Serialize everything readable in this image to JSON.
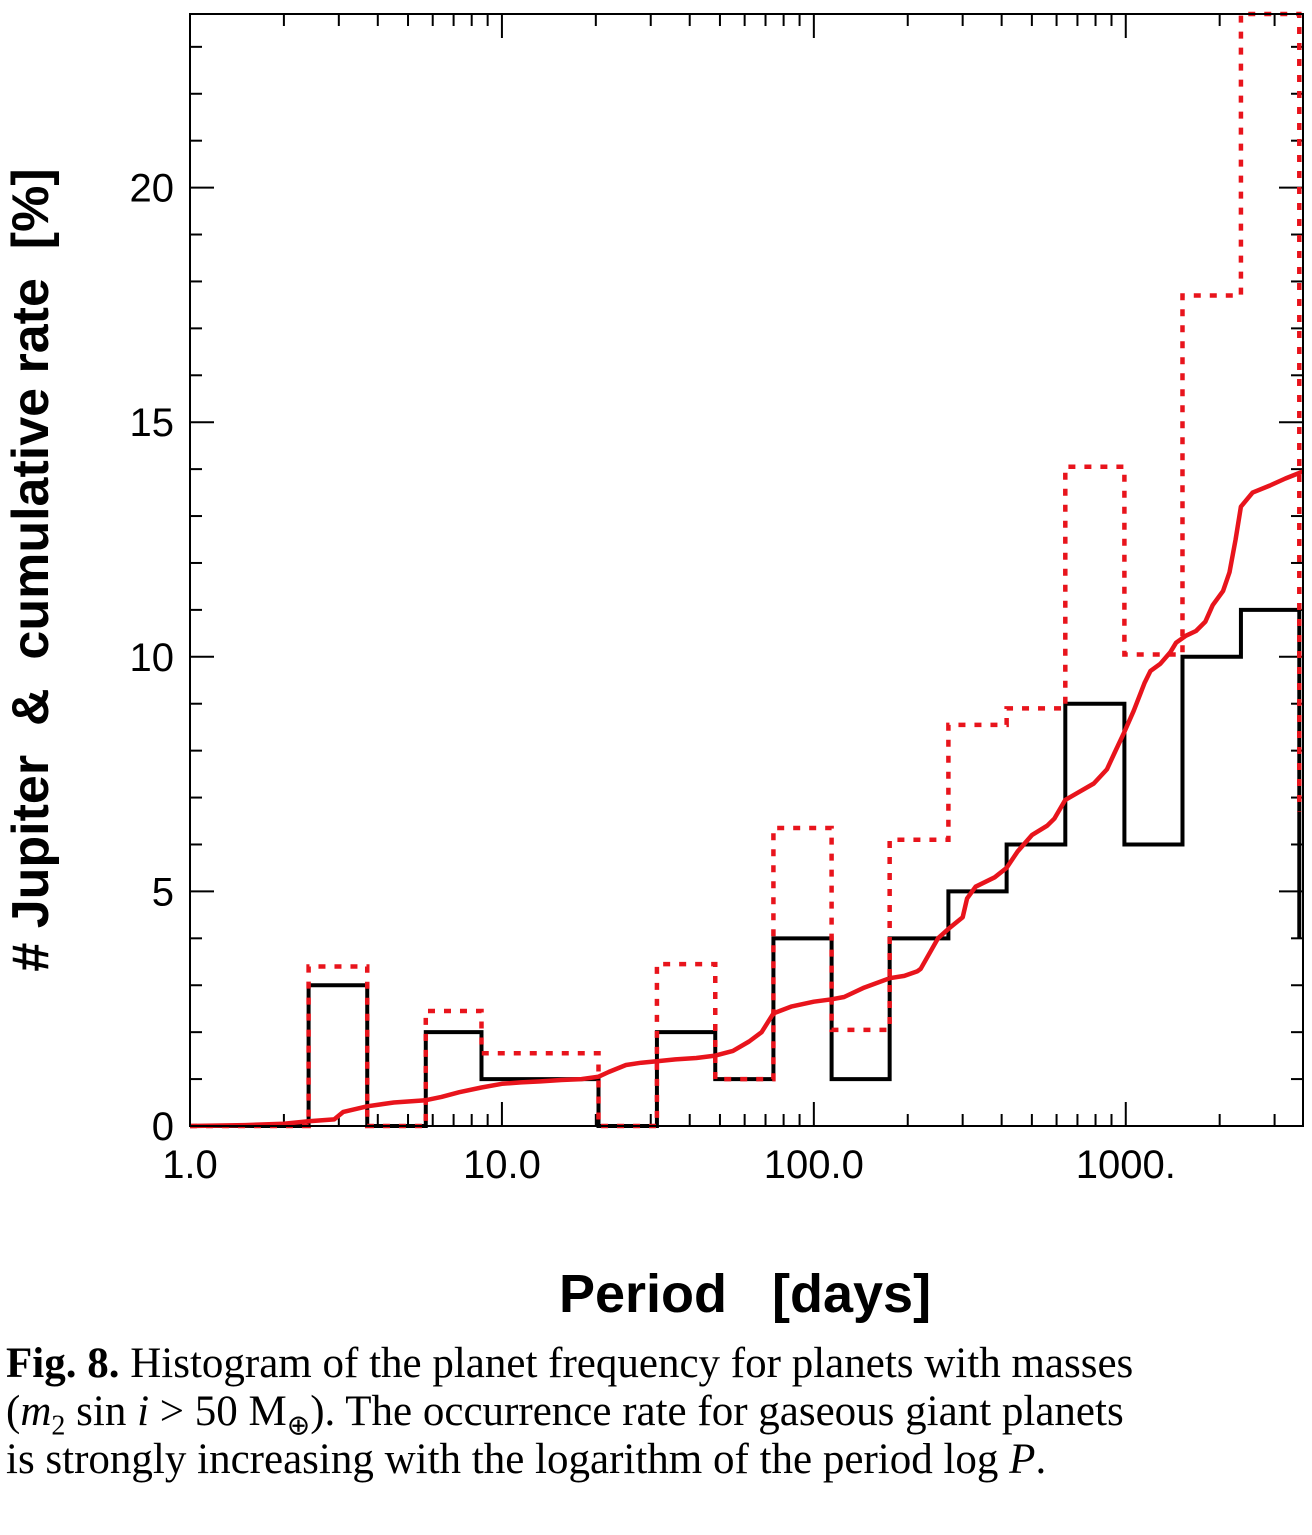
{
  "chart_data": {
    "type": "bar",
    "xlabel": "Period   [days]",
    "ylabel": "# Jupiter  &  cumulative rate  [%]",
    "x_scale": "log",
    "xlim": [
      1.0,
      3700
    ],
    "ylim": [
      0,
      23.7
    ],
    "x_ticks": [
      {
        "value": 1,
        "label": "1.0"
      },
      {
        "value": 10,
        "label": "10.0"
      },
      {
        "value": 100,
        "label": "100.0"
      },
      {
        "value": 1000,
        "label": "1000."
      }
    ],
    "y_ticks": [
      {
        "value": 0,
        "label": "0"
      },
      {
        "value": 5,
        "label": "5"
      },
      {
        "value": 10,
        "label": "10"
      },
      {
        "value": 15,
        "label": "15"
      },
      {
        "value": 20,
        "label": "20"
      }
    ],
    "bin_edges": [
      1.0,
      1.5,
      2.4,
      3.7,
      5.7,
      8.6,
      13.3,
      20.4,
      31.4,
      48.3,
      74.2,
      114,
      175,
      270,
      415,
      640,
      990,
      1520,
      2340,
      3600
    ],
    "series": [
      {
        "style": "solid-black-step",
        "values": [
          0,
          0,
          3,
          0,
          2,
          1,
          1,
          0,
          2,
          1,
          4,
          1,
          4,
          5,
          6,
          9,
          6,
          10,
          11,
          4
        ]
      },
      {
        "style": "dotted-red-step",
        "values": [
          0,
          0,
          3.4,
          0,
          2.45,
          1.55,
          1.55,
          0,
          3.45,
          1,
          6.35,
          2.05,
          6.1,
          8.55,
          8.9,
          14.05,
          10.05,
          17.7,
          23.7,
          6.7
        ]
      },
      {
        "style": "solid-red-line",
        "x": [
          1.0,
          1.5,
          2.0,
          2.4,
          2.9,
          3.1,
          3.7,
          4.5,
          5.7,
          6.4,
          7.3,
          8.6,
          10.0,
          11.5,
          13.3,
          15.5,
          18.0,
          20.4,
          22.0,
          25.0,
          28.0,
          31.4,
          36.0,
          42.0,
          48.3,
          55.0,
          62.0,
          68.0,
          74.2,
          85.0,
          100.0,
          114.0,
          125.0,
          145.0,
          175.0,
          195.0,
          215.0,
          220.0,
          250.0,
          270.0,
          300.0,
          310.0,
          330.0,
          380.0,
          415.0,
          450.0,
          500.0,
          560.0,
          590.0,
          640.0,
          700.0,
          790.0,
          870.0,
          920.0,
          990.0,
          1060.0,
          1150.0,
          1200.0,
          1290.0,
          1390.0,
          1450.0,
          1560.0,
          1680.0,
          1800.0,
          1900.0,
          2050.0,
          2150.0,
          2250.0,
          2340.0,
          2550.0,
          2900.0,
          3250.0,
          3700.0
        ],
        "values": [
          0.0,
          0.02,
          0.05,
          0.1,
          0.14,
          0.3,
          0.42,
          0.5,
          0.55,
          0.62,
          0.72,
          0.82,
          0.9,
          0.93,
          0.95,
          0.98,
          1.0,
          1.05,
          1.15,
          1.3,
          1.35,
          1.38,
          1.42,
          1.45,
          1.5,
          1.6,
          1.8,
          2.0,
          2.4,
          2.55,
          2.65,
          2.7,
          2.75,
          2.95,
          3.15,
          3.2,
          3.3,
          3.35,
          4.0,
          4.2,
          4.45,
          4.85,
          5.1,
          5.3,
          5.5,
          5.85,
          6.2,
          6.4,
          6.55,
          6.95,
          7.1,
          7.3,
          7.6,
          7.95,
          8.4,
          8.85,
          9.45,
          9.7,
          9.85,
          10.1,
          10.3,
          10.45,
          10.55,
          10.75,
          11.1,
          11.4,
          11.8,
          12.5,
          13.2,
          13.5,
          13.65,
          13.8,
          13.95
        ]
      }
    ]
  },
  "caption": {
    "label": "Fig. 8.",
    "line1": " Histogram of the planet frequency for planets with masses",
    "line2_a": "(",
    "line2_m": "m",
    "line2_sub": "2",
    "line2_b": " sin ",
    "line2_i": "i",
    "line2_c": " > 50 M",
    "line2_sub2": "⊕",
    "line2_d": "). The occurrence rate for gaseous giant planets",
    "line3_a": "is strongly increasing with the logarithm of the period log ",
    "line3_p": "P",
    "line3_b": "."
  }
}
